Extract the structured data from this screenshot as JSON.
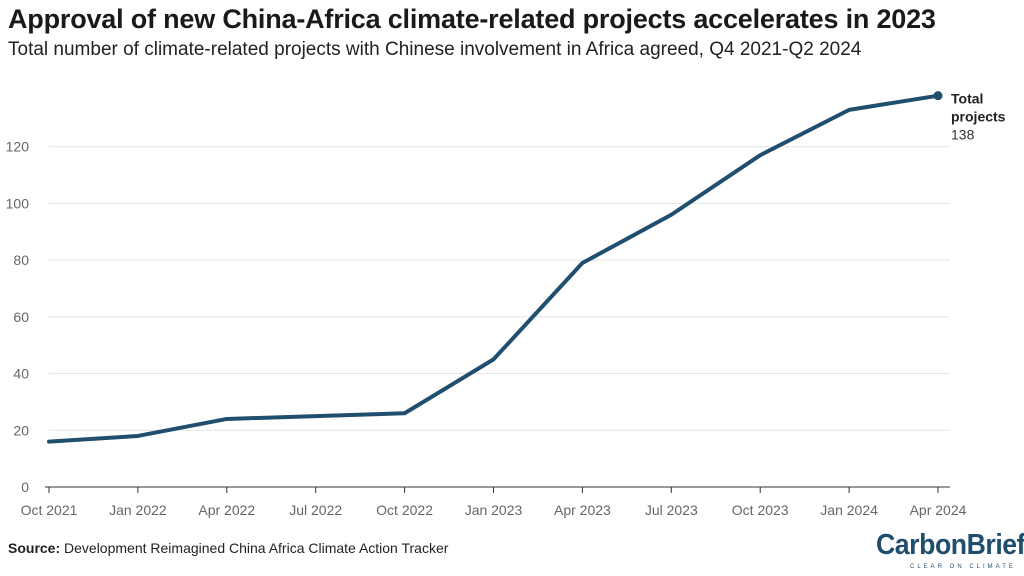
{
  "header": {
    "title": "Approval of new China-Africa climate-related projects accelerates in 2023",
    "subtitle": "Total number of climate-related projects with Chinese involvement in Africa agreed, Q4 2021-Q2 2024"
  },
  "footer": {
    "source_label": "Source:",
    "source_text": " Development Reimagined China Africa Climate Action Tracker",
    "logo_text": "CarbonBrief",
    "logo_tagline": "CLEAR ON CLIMATE"
  },
  "colors": {
    "line": "#1f4e6e",
    "grid": "#e3e3e3",
    "axis": "#333333",
    "tick_label": "#666666"
  },
  "chart_data": {
    "type": "line",
    "title": "Approval of new China-Africa climate-related projects accelerates in 2023",
    "subtitle": "Total number of climate-related projects with Chinese involvement in Africa agreed, Q4 2021-Q2 2024",
    "xlabel": "",
    "ylabel": "",
    "ylim": [
      0,
      140
    ],
    "yticks": [
      0,
      20,
      40,
      60,
      80,
      100,
      120
    ],
    "grid": true,
    "categories": [
      "Oct 2021",
      "Jan 2022",
      "Apr 2022",
      "Jul 2022",
      "Oct 2022",
      "Jan 2023",
      "Apr 2023",
      "Jul 2023",
      "Oct 2023",
      "Jan 2024",
      "Apr 2024"
    ],
    "series": [
      {
        "values": [
          16,
          18,
          24,
          25,
          26,
          45,
          79,
          96,
          117,
          133,
          138
        ]
      }
    ],
    "annotation": {
      "label": "Total projects",
      "value": "138"
    }
  }
}
